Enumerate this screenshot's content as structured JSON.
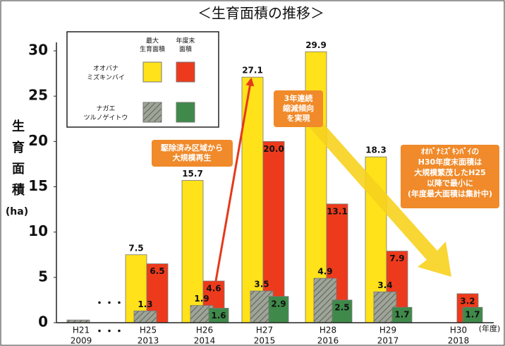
{
  "chart_data": {
    "type": "bar",
    "title": "＜生育面積の推移＞",
    "ylabel": [
      "生",
      "育",
      "面",
      "積"
    ],
    "yunit": "(ha)",
    "xunit": "(年度)",
    "gap_marker": "・・・",
    "categories": [
      "H21",
      "H25",
      "H26",
      "H27",
      "H28",
      "H29",
      "H30"
    ],
    "category_years": [
      "2009",
      "2013",
      "2014",
      "2015",
      "2016",
      "2017",
      "2018"
    ],
    "ylim": [
      0,
      30
    ],
    "yticks": [
      0,
      5,
      10,
      15,
      20,
      25,
      30
    ],
    "legend": {
      "columns": [
        [
          "最大",
          "生育面積"
        ],
        [
          "年度末",
          "面積"
        ]
      ],
      "rows": [
        [
          "オオバナ",
          "ミズキンバイ"
        ],
        [
          "ナガエ",
          "ツルノゲイトウ"
        ]
      ]
    },
    "series": [
      {
        "color": "#ffe21a",
        "values": [
          null,
          7.5,
          15.7,
          27.1,
          29.9,
          18.3,
          null
        ]
      },
      {
        "color": "#ee3a1c",
        "values": [
          null,
          6.5,
          4.6,
          20.0,
          13.1,
          7.9,
          3.2
        ],
        "value_labels": [
          null,
          "6.5",
          "4.6",
          "20.0",
          "13.1",
          "7.9",
          "3.2"
        ]
      },
      {
        "color": "#9ea497",
        "hatch": true,
        "values": [
          0.3,
          1.3,
          1.9,
          3.5,
          4.9,
          3.4,
          null
        ],
        "value_labels": [
          null,
          "1.3",
          "1.9",
          "3.5",
          "4.9",
          "3.4",
          null
        ]
      },
      {
        "color": "#3f8a4a",
        "values": [
          null,
          null,
          1.6,
          2.9,
          2.5,
          1.7,
          1.7
        ]
      }
    ],
    "annotations": [
      {
        "lines": [
          "駆除済み区域から",
          "大規模再生"
        ]
      },
      {
        "lines": [
          "3年連続",
          "縮減傾向",
          "を実現"
        ]
      },
      {
        "lines": [
          "ｵｵﾊﾞﾅﾐｽﾞｷﾝﾊﾞｲの",
          "H30年度末面積は",
          "大規模繁茂したH25",
          "以降で最小に",
          "(年度最大面積は集計中)"
        ]
      }
    ]
  }
}
